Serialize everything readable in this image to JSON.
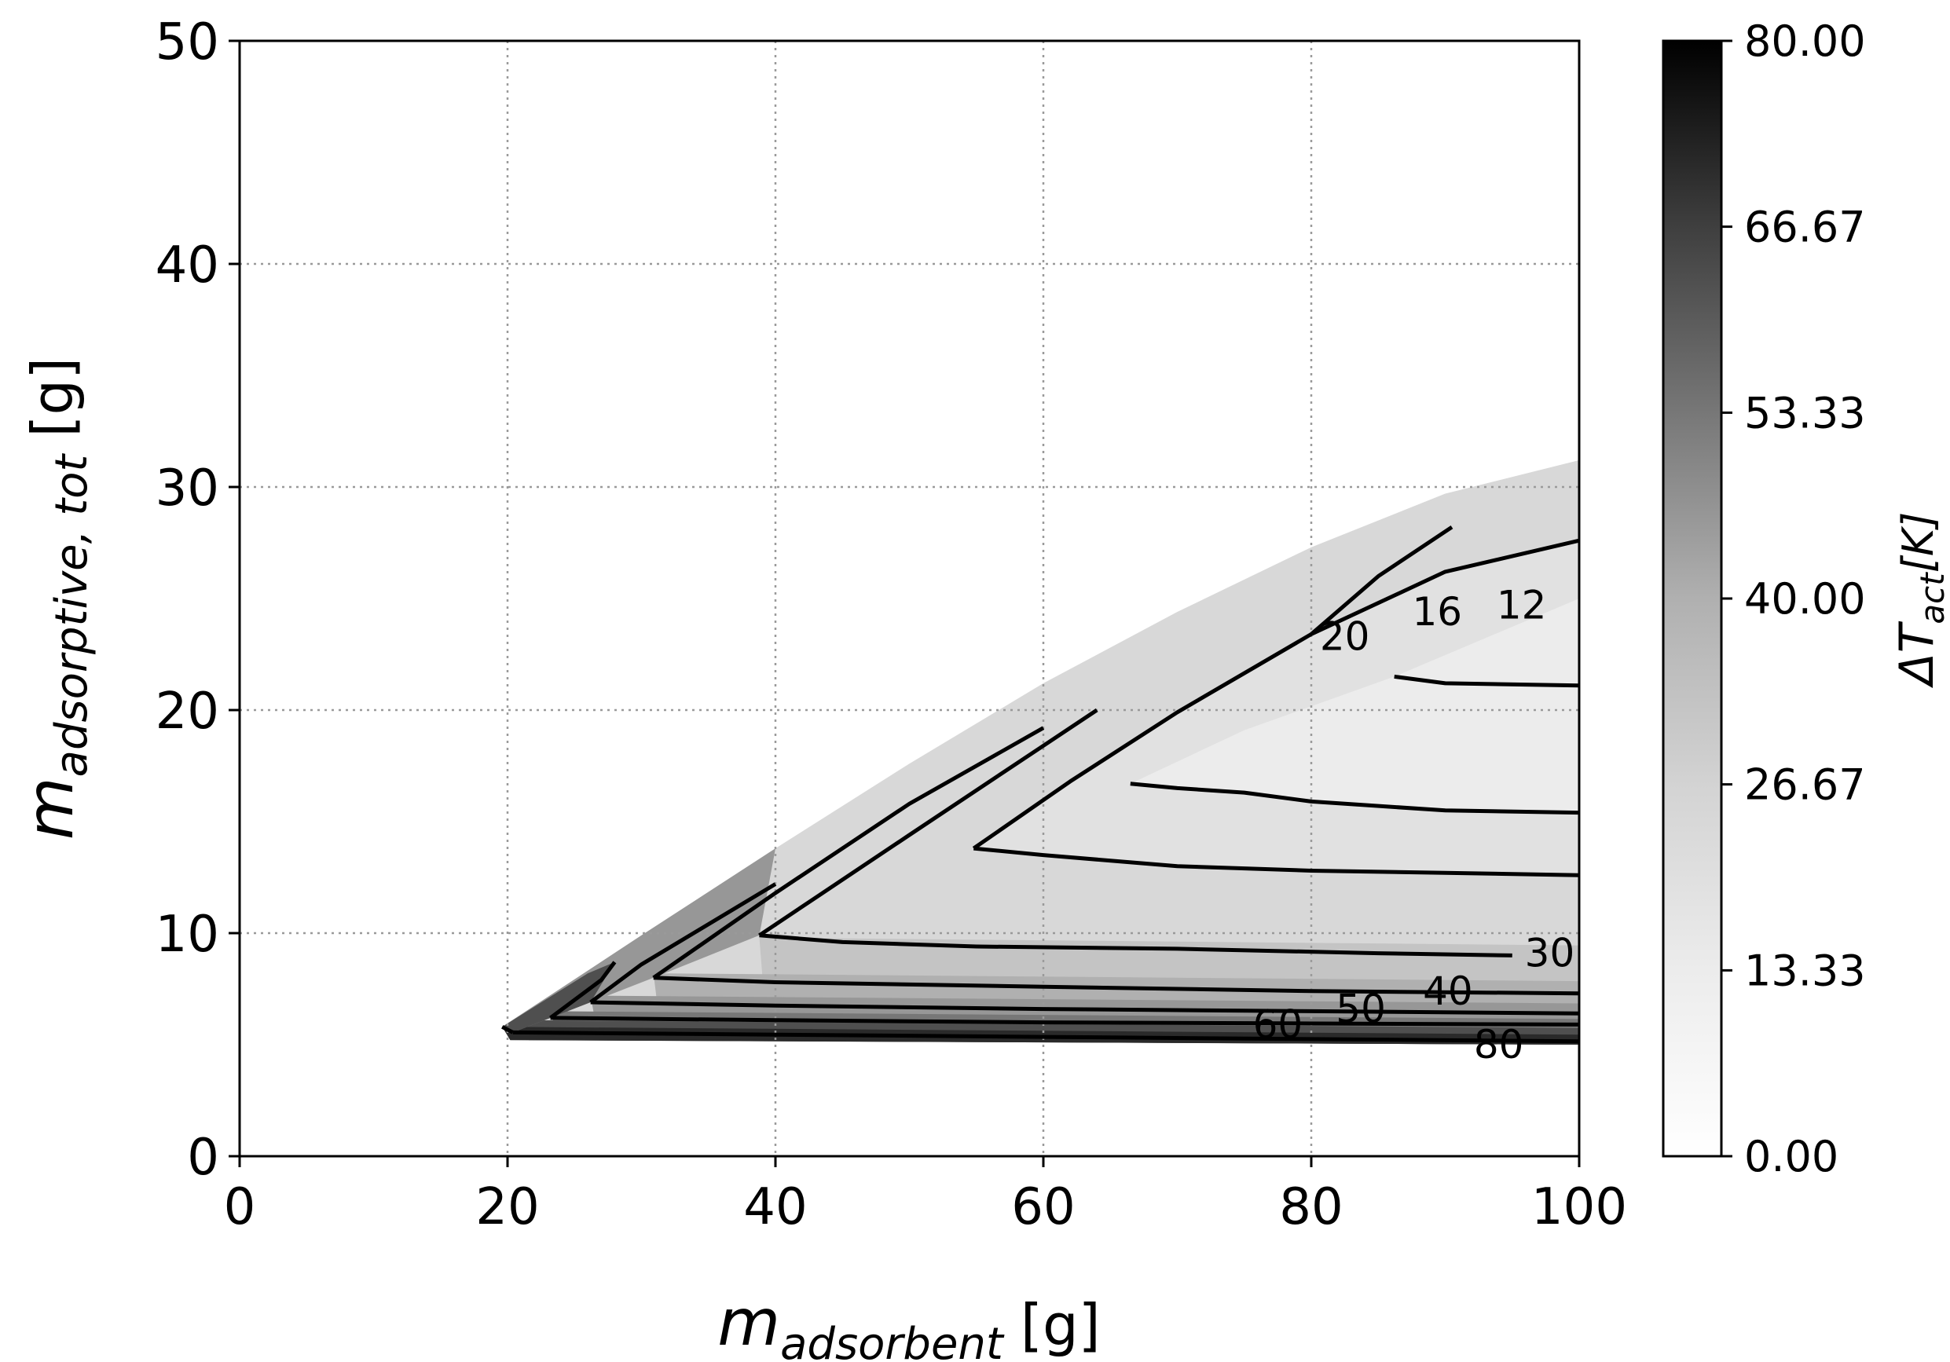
{
  "chart_data": {
    "type": "contourf",
    "xlabel": {
      "main": "m",
      "sub": "adsorbent",
      "unit": "[g]"
    },
    "ylabel": {
      "main": "m",
      "sub": "adsorptive, tot",
      "unit": "[g]"
    },
    "colorbar_label": {
      "main": "ΔT",
      "sub": "act",
      "unit": "[K]"
    },
    "xlim": [
      0,
      100
    ],
    "ylim": [
      0,
      50
    ],
    "x_ticks": [
      "0",
      "20",
      "40",
      "60",
      "80",
      "100"
    ],
    "y_ticks": [
      "0",
      "10",
      "20",
      "30",
      "40",
      "50"
    ],
    "colorbar_range": [
      0,
      80
    ],
    "colorbar_ticks": [
      "0.00",
      "13.33",
      "26.67",
      "40.00",
      "53.33",
      "66.67",
      "80.00"
    ],
    "colormap": "Greys",
    "grid": true,
    "fill_colors": [
      "#ececec",
      "#e1e1e1",
      "#d3d3d3",
      "#c4c4c4",
      "#b0b0b0",
      "#979797",
      "#777777",
      "#4f4f4f",
      "#2a2a2a"
    ],
    "feasible_region_upper_edge": [
      [
        19.6,
        5.8
      ],
      [
        30,
        9.9
      ],
      [
        40,
        13.8
      ],
      [
        50,
        17.6
      ],
      [
        60,
        21.2
      ],
      [
        70,
        24.4
      ],
      [
        80,
        27.3
      ],
      [
        90,
        29.7
      ],
      [
        100,
        31.2
      ]
    ],
    "contours": [
      {
        "level": 12,
        "label": "12",
        "points": [
          [
            86.2,
            21.5
          ],
          [
            90,
            21.2
          ],
          [
            100,
            21.1
          ]
        ]
      },
      {
        "level": 16,
        "label": "16",
        "points": [
          [
            66.5,
            16.7
          ],
          [
            70,
            16.5
          ],
          [
            75,
            16.3
          ],
          [
            80,
            15.9
          ],
          [
            90,
            15.5
          ],
          [
            100,
            15.4
          ]
        ]
      },
      {
        "level": 20,
        "label": "20",
        "points": [
          [
            54.8,
            13.8
          ],
          [
            60,
            13.5
          ],
          [
            70,
            13
          ],
          [
            80,
            12.8
          ],
          [
            90,
            12.7
          ],
          [
            100,
            12.6
          ]
        ]
      },
      {
        "level": 30,
        "label": "30",
        "points": [
          [
            38.8,
            9.9
          ],
          [
            45,
            9.6
          ],
          [
            55,
            9.4
          ],
          [
            70,
            9.3
          ],
          [
            85,
            9.1
          ],
          [
            95,
            9.0
          ]
        ]
      },
      {
        "level": 40,
        "label": "40",
        "points": [
          [
            30.9,
            8.0
          ],
          [
            40,
            7.8
          ],
          [
            60,
            7.6
          ],
          [
            80,
            7.4
          ],
          [
            100,
            7.3
          ]
        ]
      },
      {
        "level": 50,
        "label": "50",
        "points": [
          [
            26.2,
            6.9
          ],
          [
            40,
            6.75
          ],
          [
            60,
            6.6
          ],
          [
            80,
            6.5
          ],
          [
            100,
            6.4
          ]
        ]
      },
      {
        "level": 60,
        "label": "60",
        "points": [
          [
            23.2,
            6.2
          ],
          [
            40,
            6.1
          ],
          [
            60,
            6.0
          ],
          [
            80,
            5.95
          ],
          [
            100,
            5.9
          ]
        ]
      },
      {
        "level": 80,
        "label": "80",
        "points": [
          [
            20.4,
            5.55
          ],
          [
            40,
            5.45
          ],
          [
            60,
            5.35
          ],
          [
            80,
            5.25
          ],
          [
            100,
            5.15
          ]
        ]
      }
    ],
    "contour_upper_edges": [
      {
        "level": 20,
        "points": [
          [
            54.8,
            13.8
          ],
          [
            62,
            16.8
          ],
          [
            70,
            19.9
          ],
          [
            80,
            23.4
          ],
          [
            90,
            26.2
          ],
          [
            100,
            27.6
          ]
        ]
      },
      {
        "level": 30,
        "points": [
          [
            38.8,
            9.9
          ],
          [
            50,
            14.4
          ],
          [
            60,
            18.4
          ],
          [
            64,
            20.0
          ]
        ]
      },
      {
        "level": 40,
        "points": [
          [
            30.9,
            8.0
          ],
          [
            40,
            11.8
          ],
          [
            50,
            15.8
          ],
          [
            60,
            19.2
          ]
        ]
      },
      {
        "level": 50,
        "points": [
          [
            26.2,
            6.9
          ],
          [
            30,
            8.6
          ],
          [
            40,
            12.2
          ]
        ]
      },
      {
        "level": 60,
        "points": [
          [
            23.2,
            6.2
          ],
          [
            27,
            7.9
          ],
          [
            28,
            8.7
          ]
        ]
      },
      {
        "level": 80,
        "points": [
          [
            19.6,
            5.8
          ],
          [
            20.4,
            5.55
          ]
        ]
      },
      {
        "level": 24,
        "points": [
          [
            80,
            23.4
          ],
          [
            85,
            26.0
          ],
          [
            90.5,
            28.2
          ]
        ]
      }
    ],
    "contour_labels": [
      {
        "text": "12",
        "x": 95.7,
        "y": 24.7
      },
      {
        "text": "16",
        "x": 89.4,
        "y": 24.4
      },
      {
        "text": "20",
        "x": 82.5,
        "y": 23.3
      },
      {
        "text": "30",
        "x": 97.8,
        "y": 9.1
      },
      {
        "text": "40",
        "x": 90.2,
        "y": 7.4
      },
      {
        "text": "50",
        "x": 83.7,
        "y": 6.6
      },
      {
        "text": "60",
        "x": 77.5,
        "y": 5.9
      },
      {
        "text": "80",
        "x": 94,
        "y": 5.0
      }
    ]
  }
}
